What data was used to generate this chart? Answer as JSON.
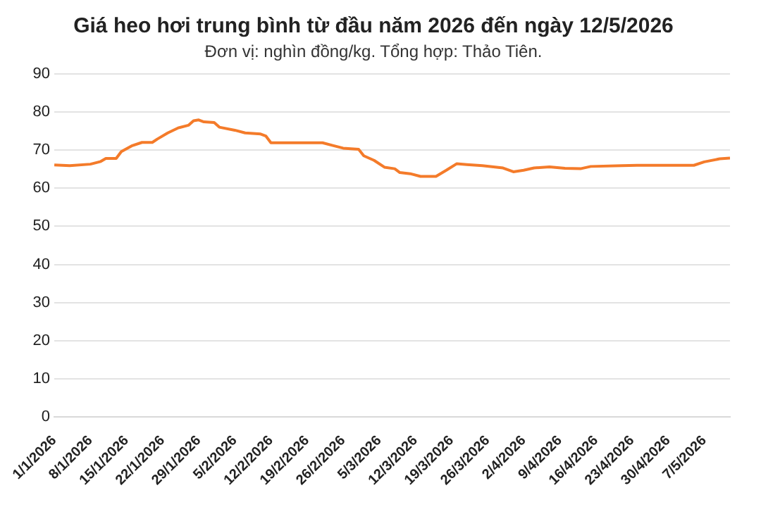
{
  "chart_data": {
    "type": "line",
    "title": "Giá heo hơi trung bình từ đầu năm 2026 đến ngày 12/5/2026",
    "subtitle": "Đơn vị: nghìn đồng/kg. Tổng hợp: Thảo Tiên.",
    "x": [
      "2026-01-01",
      "2026-01-04",
      "2026-01-08",
      "2026-01-10",
      "2026-01-11",
      "2026-01-13",
      "2026-01-14",
      "2026-01-16",
      "2026-01-18",
      "2026-01-20",
      "2026-01-21",
      "2026-01-23",
      "2026-01-25",
      "2026-01-27",
      "2026-01-28",
      "2026-01-29",
      "2026-01-30",
      "2026-02-01",
      "2026-02-02",
      "2026-02-05",
      "2026-02-07",
      "2026-02-10",
      "2026-02-11",
      "2026-02-12",
      "2026-02-22",
      "2026-02-24",
      "2026-02-26",
      "2026-03-01",
      "2026-03-02",
      "2026-03-04",
      "2026-03-06",
      "2026-03-08",
      "2026-03-09",
      "2026-03-11",
      "2026-03-13",
      "2026-03-16",
      "2026-03-18",
      "2026-03-20",
      "2026-03-22",
      "2026-03-25",
      "2026-03-29",
      "2026-03-31",
      "2026-04-02",
      "2026-04-04",
      "2026-04-07",
      "2026-04-10",
      "2026-04-13",
      "2026-04-15",
      "2026-04-21",
      "2026-04-24",
      "2026-05-05",
      "2026-05-07",
      "2026-05-10",
      "2026-05-12"
    ],
    "series": [
      {
        "color": "#f47b2a",
        "values": [
          66.1,
          65.9,
          66.3,
          67.0,
          67.8,
          67.8,
          69.6,
          71.1,
          72.0,
          72.0,
          72.9,
          74.5,
          75.8,
          76.5,
          77.7,
          77.9,
          77.4,
          77.2,
          76.0,
          75.2,
          74.5,
          74.2,
          73.7,
          71.9,
          71.9,
          71.2,
          70.5,
          70.2,
          68.5,
          67.3,
          65.5,
          65.1,
          64.1,
          63.8,
          63.1,
          63.1,
          64.7,
          66.4,
          66.2,
          65.9,
          65.3,
          64.3,
          64.7,
          65.3,
          65.6,
          65.2,
          65.1,
          65.7,
          65.9,
          66.0,
          66.0,
          66.9,
          67.7,
          67.9
        ]
      }
    ],
    "xlim": [
      "2026-01-01",
      "2026-05-12"
    ],
    "xticks": [
      {
        "value": "2026-01-01",
        "label": "1/1/2026"
      },
      {
        "value": "2026-01-08",
        "label": "8/1/2026"
      },
      {
        "value": "2026-01-15",
        "label": "15/1/2026"
      },
      {
        "value": "2026-01-22",
        "label": "22/1/2026"
      },
      {
        "value": "2026-01-29",
        "label": "29/1/2026"
      },
      {
        "value": "2026-02-05",
        "label": "5/2/2026"
      },
      {
        "value": "2026-02-12",
        "label": "12/2/2026"
      },
      {
        "value": "2026-02-19",
        "label": "19/2/2026"
      },
      {
        "value": "2026-02-26",
        "label": "26/2/2026"
      },
      {
        "value": "2026-03-05",
        "label": "5/3/2026"
      },
      {
        "value": "2026-03-12",
        "label": "12/3/2026"
      },
      {
        "value": "2026-03-19",
        "label": "19/3/2026"
      },
      {
        "value": "2026-03-26",
        "label": "26/3/2026"
      },
      {
        "value": "2026-04-02",
        "label": "2/4/2026"
      },
      {
        "value": "2026-04-09",
        "label": "9/4/2026"
      },
      {
        "value": "2026-04-16",
        "label": "16/4/2026"
      },
      {
        "value": "2026-04-23",
        "label": "23/4/2026"
      },
      {
        "value": "2026-04-30",
        "label": "30/4/2026"
      },
      {
        "value": "2026-05-07",
        "label": "7/5/2026"
      }
    ],
    "ylim": [
      0,
      90
    ],
    "yticks": [
      0,
      10,
      20,
      30,
      40,
      50,
      60,
      70,
      80,
      90
    ],
    "grid": "y",
    "legend": false,
    "marker": "none",
    "line_style": "solid"
  }
}
